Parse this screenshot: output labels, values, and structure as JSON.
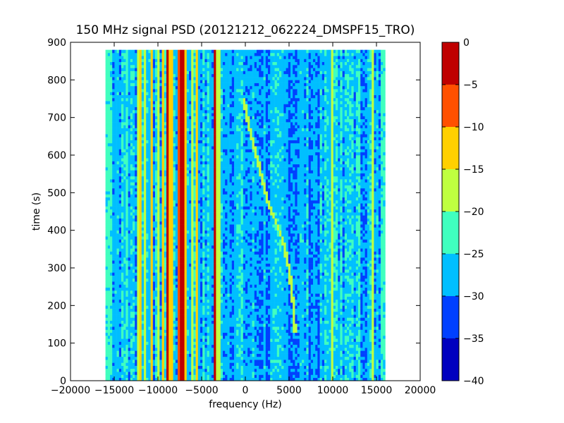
{
  "chart_data": {
    "type": "heatmap",
    "title": "150 MHz signal PSD (20121212_062224_DMSPF15_TRO)",
    "xlabel": "frequency (Hz)",
    "ylabel": "time (s)",
    "xlim": [
      -20000,
      20000
    ],
    "ylim": [
      0,
      900
    ],
    "data_extent": {
      "x": [
        -16000,
        16000
      ],
      "y": [
        0,
        880
      ]
    },
    "x_ticks": [
      -20000,
      -15000,
      -10000,
      -5000,
      0,
      5000,
      10000,
      15000,
      20000
    ],
    "y_ticks": [
      0,
      100,
      200,
      300,
      400,
      500,
      600,
      700,
      800,
      900
    ],
    "colorbar": {
      "range": [
        -40,
        0
      ],
      "ticks": [
        0,
        -5,
        -10,
        -15,
        -20,
        -25,
        -30,
        -35,
        -40
      ],
      "levels": [
        {
          "min": -40,
          "max": -35,
          "color": "#0000bf"
        },
        {
          "min": -35,
          "max": -30,
          "color": "#0040ff"
        },
        {
          "min": -30,
          "max": -25,
          "color": "#00bfff"
        },
        {
          "min": -25,
          "max": -20,
          "color": "#40ffbf"
        },
        {
          "min": -20,
          "max": -15,
          "color": "#bfff40"
        },
        {
          "min": -15,
          "max": -10,
          "color": "#ffd000"
        },
        {
          "min": -10,
          "max": -5,
          "color": "#ff5000"
        },
        {
          "min": -5,
          "max": 0,
          "color": "#bf0000"
        }
      ]
    },
    "features": {
      "background_level": -27,
      "stable_lines": [
        {
          "freq": -16000,
          "level": -24,
          "width": 250
        },
        {
          "freq": -15500,
          "level": -24,
          "width": 200
        },
        {
          "freq": -13500,
          "level": -24,
          "width": 150
        },
        {
          "freq": -12300,
          "level": -17,
          "width": 150
        },
        {
          "freq": -12000,
          "level": -12,
          "width": 120
        },
        {
          "freq": -11500,
          "level": -17,
          "width": 150
        },
        {
          "freq": -10800,
          "level": -12,
          "width": 120
        },
        {
          "freq": -10000,
          "level": -17,
          "width": 150
        },
        {
          "freq": -9500,
          "level": -12,
          "width": 120
        },
        {
          "freq": -9000,
          "level": -2,
          "width": 100
        },
        {
          "freq": -8500,
          "level": -12,
          "width": 120
        },
        {
          "freq": -7500,
          "level": -7,
          "width": 120
        },
        {
          "freq": -7200,
          "level": -2,
          "width": 100
        },
        {
          "freq": -6800,
          "level": -12,
          "width": 120
        },
        {
          "freq": -6000,
          "level": -17,
          "width": 150
        },
        {
          "freq": -5500,
          "level": -12,
          "width": 120
        },
        {
          "freq": -3500,
          "level": -2,
          "width": 100
        },
        {
          "freq": -3100,
          "level": -17,
          "width": 120
        },
        {
          "freq": 10000,
          "level": -17,
          "width": 150
        },
        {
          "freq": 11000,
          "level": -24,
          "width": 200
        },
        {
          "freq": 13000,
          "level": -24,
          "width": 200
        },
        {
          "freq": 14500,
          "level": -17,
          "width": 150
        },
        {
          "freq": 15800,
          "level": -24,
          "width": 250
        }
      ],
      "doppler_trace": {
        "level": -17,
        "points": [
          [
            5700,
            130
          ],
          [
            5500,
            200
          ],
          [
            5000,
            300
          ],
          [
            4200,
            380
          ],
          [
            3400,
            430
          ],
          [
            2500,
            480
          ],
          [
            1500,
            580
          ],
          [
            500,
            670
          ],
          [
            -200,
            750
          ]
        ]
      }
    }
  }
}
